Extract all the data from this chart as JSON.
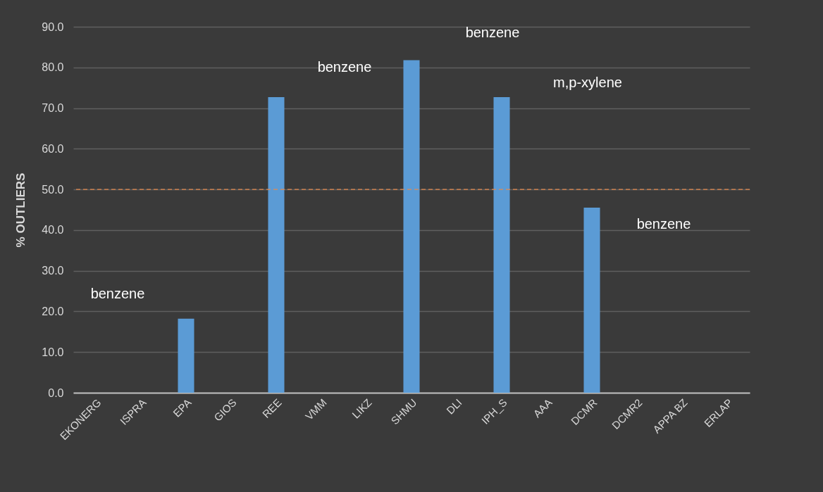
{
  "chart_data": {
    "type": "bar",
    "ylabel": "% OUTLIERS",
    "categories": [
      "EKONERG",
      "ISPRA",
      "EPA",
      "GIOS",
      "REE",
      "VMM",
      "LIKZ",
      "SHMU",
      "DLI",
      "IPH_S",
      "AAA",
      "DCMR",
      "DCMR2",
      "APPA BZ",
      "ERLAP"
    ],
    "values": [
      0,
      0,
      18.2,
      0,
      72.7,
      0,
      0,
      81.8,
      0,
      72.7,
      0,
      45.5,
      0,
      0,
      0
    ],
    "color": "#5b9bd5",
    "ylim": [
      0,
      90
    ],
    "yticks": [
      {
        "value": 0,
        "label": "0.0"
      },
      {
        "value": 10,
        "label": "10.0"
      },
      {
        "value": 20,
        "label": "20.0"
      },
      {
        "value": 30,
        "label": "30.0"
      },
      {
        "value": 40,
        "label": "40.0"
      },
      {
        "value": 50,
        "label": "50.0"
      },
      {
        "value": 60,
        "label": "60.0"
      },
      {
        "value": 70,
        "label": "70.0"
      },
      {
        "value": 80,
        "label": "80.0"
      },
      {
        "value": 90,
        "label": "90.0"
      }
    ],
    "grid": "y",
    "ref_lines": [
      {
        "axis": "y",
        "value": 50,
        "color": "#e58a4e",
        "line_style": "dashed"
      }
    ],
    "annotations": [
      "benzene",
      "benzene",
      "benzene",
      "m,p-xylene",
      "benzene"
    ]
  }
}
